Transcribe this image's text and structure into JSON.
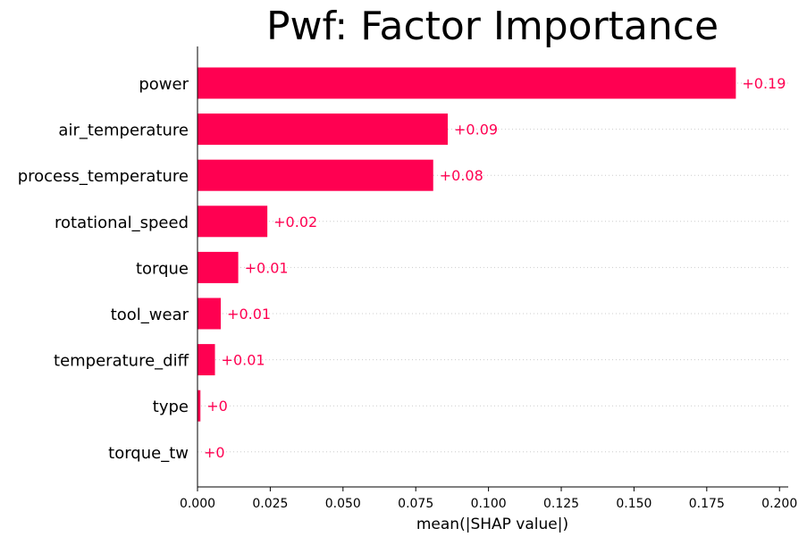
{
  "chart_data": {
    "type": "bar",
    "orientation": "horizontal",
    "title": "Pwf: Factor Importance",
    "xlabel": "mean(|SHAP value|)",
    "ylabel": "",
    "xlim": [
      0,
      0.203
    ],
    "xticks": [
      "0.000",
      "0.025",
      "0.050",
      "0.075",
      "0.100",
      "0.125",
      "0.150",
      "0.175",
      "0.200"
    ],
    "xtick_values": [
      0,
      0.025,
      0.05,
      0.075,
      0.1,
      0.125,
      0.15,
      0.175,
      0.2
    ],
    "grid": true,
    "bar_color": "#ff0051",
    "categories": [
      "power",
      "air_temperature",
      "process_temperature",
      "rotational_speed",
      "torque",
      "tool_wear",
      "temperature_diff",
      "type",
      "torque_tw"
    ],
    "values": [
      0.185,
      0.086,
      0.081,
      0.024,
      0.014,
      0.008,
      0.006,
      0.001,
      0.0
    ],
    "value_labels": [
      "+0.19",
      "+0.09",
      "+0.08",
      "+0.02",
      "+0.01",
      "+0.01",
      "+0.01",
      "+0",
      "+0"
    ]
  }
}
